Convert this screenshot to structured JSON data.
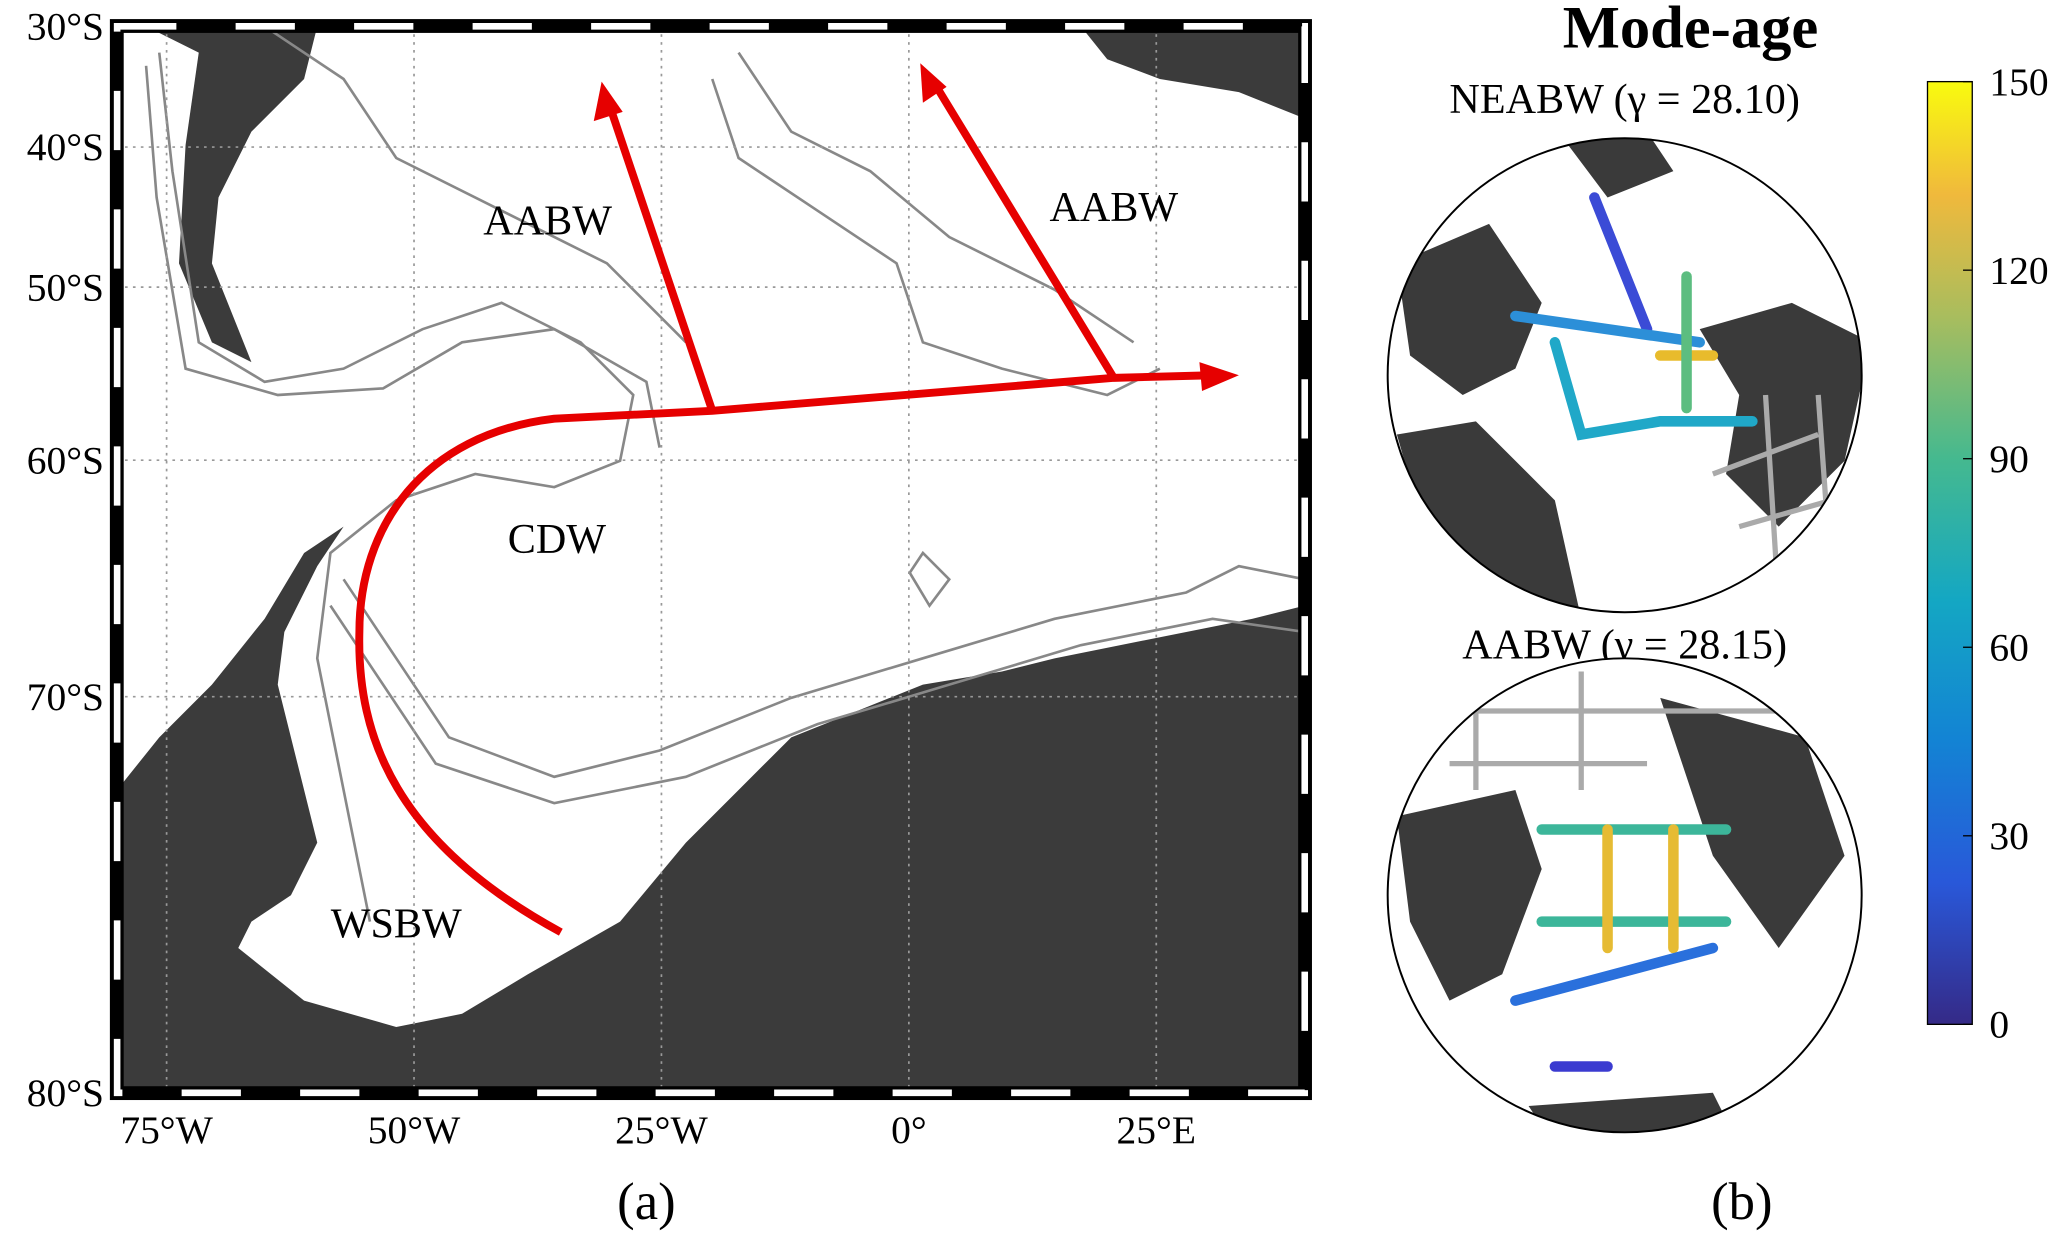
{
  "panel_a": {
    "xlim": [
      -80,
      40
    ],
    "ylim": [
      -30,
      -80
    ],
    "xticks": [
      {
        "value": -75,
        "label": "75°W"
      },
      {
        "value": -50,
        "label": "50°W"
      },
      {
        "value": -25,
        "label": "25°W"
      },
      {
        "value": 0,
        "label": "0°"
      },
      {
        "value": 25,
        "label": "25°E"
      }
    ],
    "yticks": [
      {
        "value": -30,
        "label": "30°S"
      },
      {
        "value": -40,
        "label": "40°S"
      },
      {
        "value": -50,
        "label": "50°S"
      },
      {
        "value": -60,
        "label": "60°S"
      },
      {
        "value": -70,
        "label": "70°S"
      },
      {
        "value": -80,
        "label": "80°S"
      }
    ],
    "annotations": [
      "AABW",
      "AABW",
      "CDW",
      "WSBW"
    ],
    "caption": "(a)"
  },
  "panel_b": {
    "title": "Mode-age",
    "subtitles": [
      "NEABW (γ = 28.10)",
      "AABW (γ = 28.15)"
    ],
    "colorbar": {
      "lim": [
        0,
        150
      ],
      "ticks": [
        0,
        30,
        60,
        90,
        120,
        150
      ]
    },
    "caption": "(b)"
  }
}
